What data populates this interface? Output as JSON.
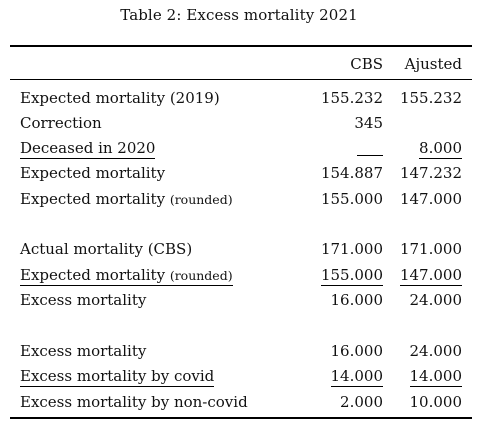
{
  "caption": "Table 2: Excess mortality 2021",
  "headers": {
    "cbs": "CBS",
    "adjusted": "Ajusted"
  },
  "rows": [
    {
      "label": "Expected mortality (2019)",
      "label_small": "",
      "cbs": "155.232",
      "adjusted": "155.232"
    },
    {
      "label": "Correction",
      "label_small": "",
      "cbs": "345",
      "adjusted": ""
    },
    {
      "label": "Deceased in 2020",
      "label_small": "",
      "cbs": "",
      "adjusted": "8.000"
    },
    {
      "label": "Expected mortality",
      "label_small": "",
      "cbs": "154.887",
      "adjusted": "147.232"
    },
    {
      "label": "Expected mortality ",
      "label_small": "(rounded)",
      "cbs": "155.000",
      "adjusted": "147.000"
    },
    {
      "label": "Actual mortality (CBS)",
      "label_small": "",
      "cbs": "171.000",
      "adjusted": "171.000"
    },
    {
      "label": "Expected mortality ",
      "label_small": "(rounded)",
      "cbs": "155.000",
      "adjusted": "147.000"
    },
    {
      "label": "Excess mortality",
      "label_small": "",
      "cbs": "16.000",
      "adjusted": "24.000"
    },
    {
      "label": "Excess mortality",
      "label_small": "",
      "cbs": "16.000",
      "adjusted": "24.000"
    },
    {
      "label": "Excess mortality by covid",
      "label_small": "",
      "cbs": "14.000",
      "adjusted": "14.000"
    },
    {
      "label": "Excess mortality by non-covid",
      "label_small": "",
      "cbs": "2.000",
      "adjusted": "10.000"
    }
  ]
}
